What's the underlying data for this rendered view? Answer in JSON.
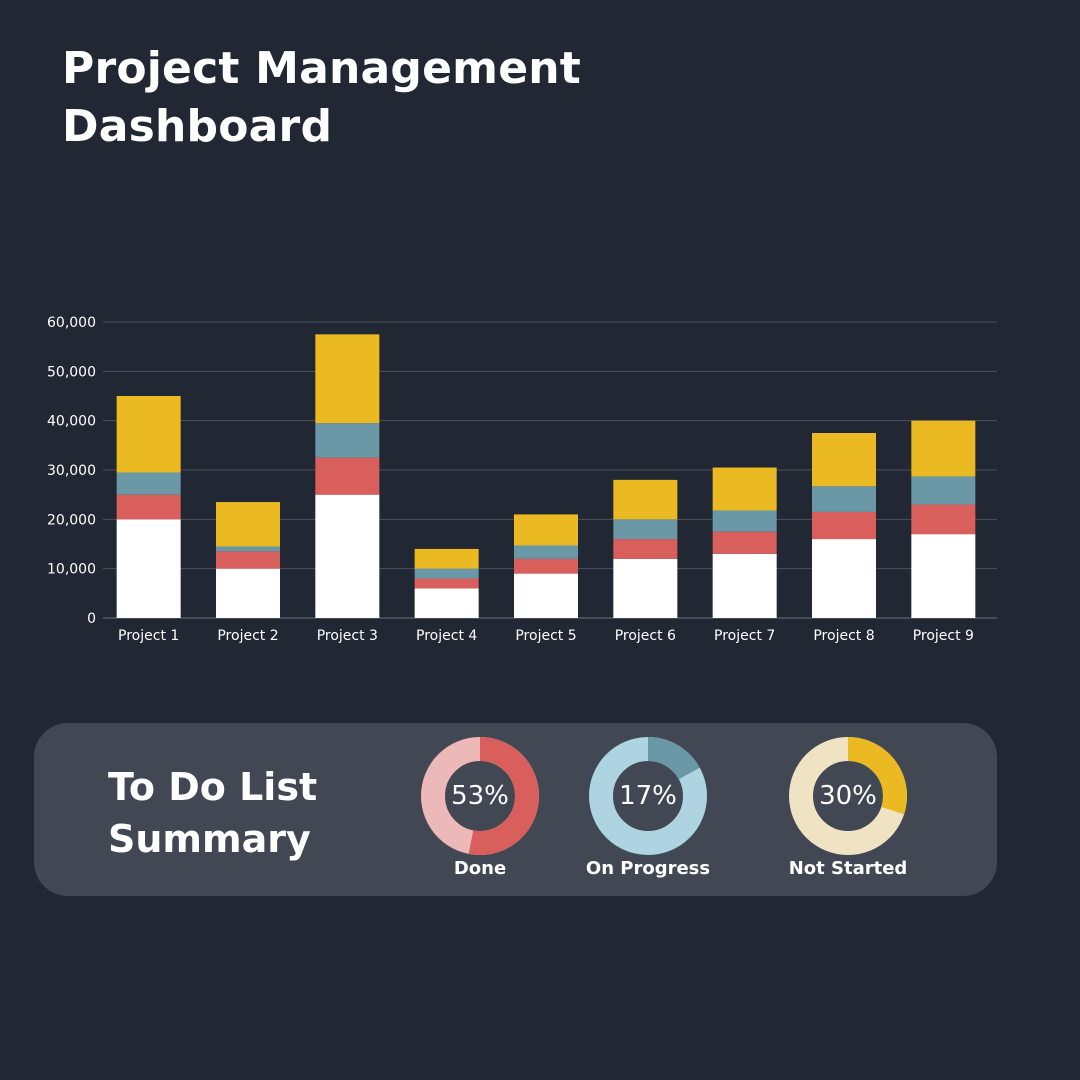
{
  "header": {
    "title_line1": "Project Management",
    "title_line2": "Dashboard"
  },
  "chart_data": {
    "type": "bar",
    "stacked": true,
    "categories": [
      "Project 1",
      "Project 2",
      "Project 3",
      "Project 4",
      "Project 5",
      "Project 6",
      "Project 7",
      "Project 8",
      "Project 9"
    ],
    "ylim": [
      0,
      60000
    ],
    "yticks": [
      "0",
      "10,000",
      "20,000",
      "30,000",
      "40,000",
      "50,000",
      "60,000"
    ],
    "ytick_values": [
      0,
      10000,
      20000,
      30000,
      40000,
      50000,
      60000
    ],
    "grid": true,
    "legend": "none",
    "series": [
      {
        "color": "#ffffff",
        "values": [
          20000,
          10000,
          25000,
          6000,
          9000,
          12000,
          13000,
          16000,
          17000
        ]
      },
      {
        "color": "#d95f5d",
        "values": [
          5000,
          3500,
          7500,
          2000,
          3000,
          4000,
          4500,
          5500,
          6000
        ]
      },
      {
        "color": "#6a98a6",
        "values": [
          4500,
          1000,
          7000,
          2000,
          2700,
          4000,
          4300,
          5200,
          5700
        ]
      },
      {
        "color": "#ebb922",
        "values": [
          15500,
          9000,
          18000,
          4000,
          6300,
          8000,
          8700,
          10800,
          11300
        ]
      }
    ]
  },
  "summary": {
    "title_line1": "To Do List",
    "title_line2": "Summary",
    "items": [
      {
        "label": "Done",
        "pct_text": "53%",
        "value": 53,
        "color": "#d95f5d",
        "track": "#ecb8b8"
      },
      {
        "label": "On Progress",
        "pct_text": "17%",
        "value": 17,
        "color": "#6a98a6",
        "track": "#add4e0"
      },
      {
        "label": "Not Started",
        "pct_text": "30%",
        "value": 30,
        "color": "#ebb922",
        "track": "#efe3c3"
      }
    ]
  }
}
